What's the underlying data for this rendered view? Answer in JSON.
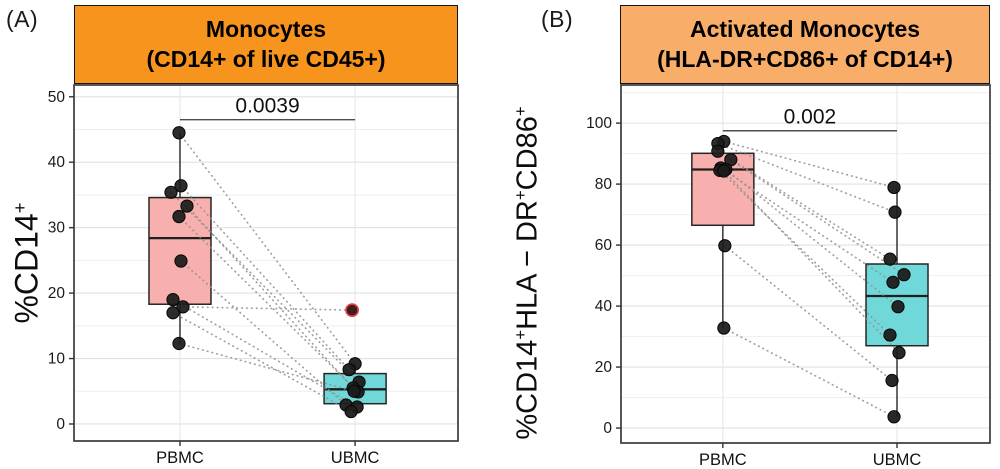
{
  "figure": {
    "panels": [
      {
        "tag": "(A)",
        "strip_title_line1": "Monocytes",
        "strip_title_line2": "(CD14+ of live CD45+)",
        "strip_color": "#F7941E",
        "ylabel_parts": [
          {
            "t": "%CD14"
          },
          {
            "t": "+",
            "sup": true
          }
        ]
      },
      {
        "tag": "(B)",
        "strip_title_line1": "Activated Monocytes",
        "strip_title_line2": "(HLA-DR+CD86+ of CD14+)",
        "strip_color": "#F8AE68",
        "ylabel_parts": [
          {
            "t": "%CD14"
          },
          {
            "t": "+",
            "sup": true
          },
          {
            "t": "HLA − DR"
          },
          {
            "t": "+",
            "sup": true
          },
          {
            "t": "CD86"
          },
          {
            "t": "+",
            "sup": true
          }
        ]
      }
    ]
  },
  "chart_data": [
    {
      "type": "box",
      "panel": "A",
      "title": "Monocytes (CD14+ of live CD45+)",
      "ylabel": "%CD14+",
      "xlabel": "",
      "categories": [
        "PBMC",
        "UBMC"
      ],
      "ylim": [
        -2.6,
        51.8
      ],
      "yticks": [
        0,
        10,
        20,
        30,
        40,
        50
      ],
      "minor_ticks": [
        5,
        15,
        25,
        35,
        45
      ],
      "grid": true,
      "legend": "none",
      "p_value": {
        "text": "0.0039",
        "line_y": 46.5
      },
      "box_colors": {
        "PBMC": "#F7B0AD",
        "UBMC": "#70D8D9"
      },
      "boxes": [
        {
          "group": "PBMC",
          "fill": "#F7B0AD",
          "whisker_low": 12.3,
          "q1": 18.3,
          "median": 28.4,
          "q3": 34.6,
          "whisker_high": 44.5
        },
        {
          "group": "UBMC",
          "fill": "#70D8D9",
          "whisker_low": 1.9,
          "q1": 3.1,
          "median": 5.3,
          "q3": 7.7,
          "whisker_high": 9.2
        }
      ],
      "paired_points": [
        {
          "pbmc": 44.5,
          "ubmc": 9.2
        },
        {
          "pbmc": 36.4,
          "ubmc": 8.3
        },
        {
          "pbmc": 35.4,
          "ubmc": 6.4
        },
        {
          "pbmc": 33.3,
          "ubmc": 5.5
        },
        {
          "pbmc": 31.7,
          "ubmc": 4.9
        },
        {
          "pbmc": 24.9,
          "ubmc": 2.9
        },
        {
          "pbmc": 19.0,
          "ubmc": 2.6
        },
        {
          "pbmc": 17.9,
          "ubmc": 17.4,
          "ubmc_outlier": true,
          "outlier_color": "#381013",
          "outlier_edge": "#E04040"
        },
        {
          "pbmc": 17.0,
          "ubmc": 1.9
        },
        {
          "pbmc": 12.3,
          "ubmc": 5.0
        }
      ]
    },
    {
      "type": "box",
      "panel": "B",
      "title": "Activated Monocytes (HLA-DR+CD86+ of CD14+)",
      "ylabel": "%CD14+HLA-DR+CD86+",
      "xlabel": "",
      "categories": [
        "PBMC",
        "UBMC"
      ],
      "ylim": [
        -4.9,
        112.5
      ],
      "yticks": [
        0,
        20,
        40,
        60,
        80,
        100
      ],
      "minor_ticks": [
        10,
        30,
        50,
        70,
        90,
        110
      ],
      "grid": true,
      "legend": "none",
      "p_value": {
        "text": "0.002",
        "line_y": 97.5
      },
      "box_colors": {
        "PBMC": "#F7B0AD",
        "UBMC": "#70D8D9"
      },
      "boxes": [
        {
          "group": "PBMC",
          "fill": "#F7B0AD",
          "whisker_low": 32.8,
          "q1": 66.5,
          "median": 84.8,
          "q3": 90.1,
          "whisker_high": 94.0
        },
        {
          "group": "UBMC",
          "fill": "#70D8D9",
          "whisker_low": 3.7,
          "q1": 27.0,
          "median": 43.3,
          "q3": 53.8,
          "whisker_high": 78.9
        }
      ],
      "paired_points": [
        {
          "pbmc": 94.0,
          "ubmc": 78.9
        },
        {
          "pbmc": 93.3,
          "ubmc": 70.8
        },
        {
          "pbmc": 90.8,
          "ubmc": 55.4
        },
        {
          "pbmc": 88.0,
          "ubmc": 50.3
        },
        {
          "pbmc": 85.3,
          "ubmc": 47.8
        },
        {
          "pbmc": 84.8,
          "ubmc": 39.8
        },
        {
          "pbmc": 84.5,
          "ubmc": 30.5
        },
        {
          "pbmc": 84.3,
          "ubmc": 24.7
        },
        {
          "pbmc": 59.8,
          "ubmc": 15.6
        },
        {
          "pbmc": 32.8,
          "ubmc": 3.7
        }
      ]
    }
  ]
}
